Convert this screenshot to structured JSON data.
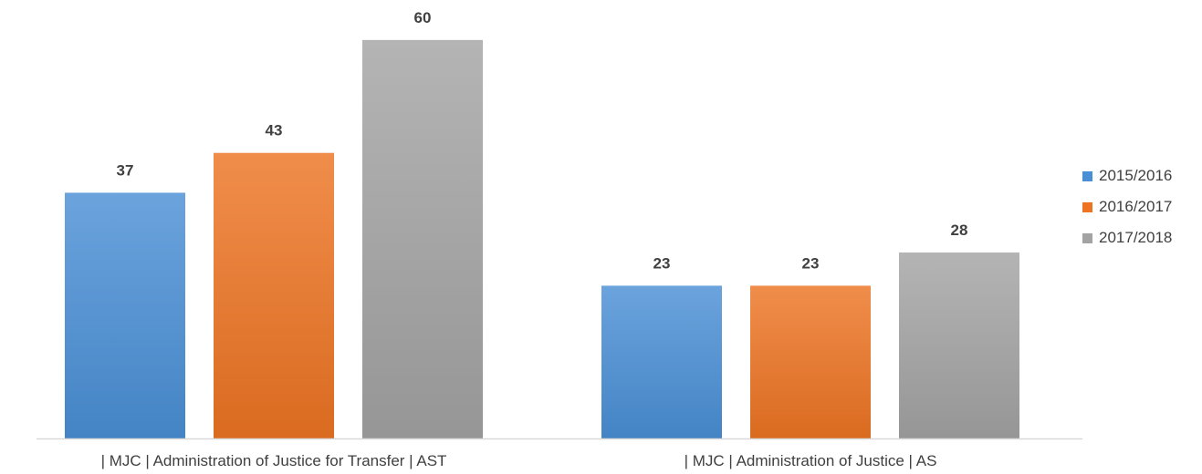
{
  "chart_data": {
    "type": "bar",
    "categories": [
      "| MJC | Administration of Justice for Transfer | AST",
      "| MJC | Administration of Justice | AS"
    ],
    "series": [
      {
        "name": "2015/2016",
        "values": [
          37,
          23
        ],
        "color": "#4a8fd6"
      },
      {
        "name": "2016/2017",
        "values": [
          43,
          23
        ],
        "color": "#ed7423"
      },
      {
        "name": "2017/2018",
        "values": [
          60,
          28
        ],
        "color": "#a3a3a3"
      }
    ],
    "data_labels": true,
    "legend": {
      "position": "right"
    },
    "gridlines": false,
    "y_axis_visible": false,
    "ylim": [
      0,
      63
    ]
  }
}
